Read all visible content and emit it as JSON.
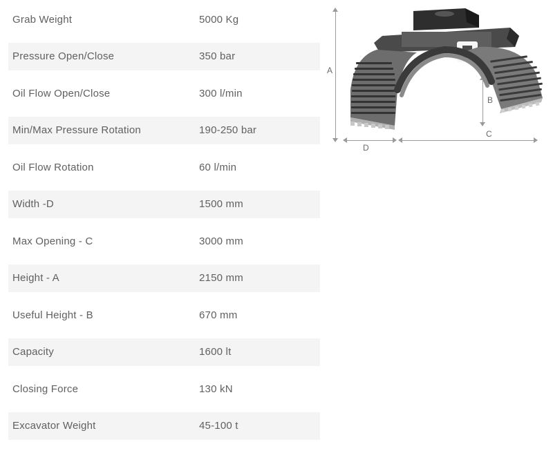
{
  "specs": [
    {
      "label": "Grab Weight",
      "value": "5000 Kg"
    },
    {
      "label": "Pressure Open/Close",
      "value": "350 bar"
    },
    {
      "label": "Oil Flow Open/Close",
      "value": "300 l/min"
    },
    {
      "label": "Min/Max Pressure Rotation",
      "value": "190-250 bar"
    },
    {
      "label": "Oil Flow Rotation",
      "value": "60 l/min"
    },
    {
      "label": "Width -D",
      "value": "1500 mm"
    },
    {
      "label": "Max Opening - C",
      "value": "3000 mm"
    },
    {
      "label": "Height - A",
      "value": "2150 mm"
    },
    {
      "label": "Useful Height - B",
      "value": "670 mm"
    },
    {
      "label": "Capacity",
      "value": "1600 lt"
    },
    {
      "label": "Closing Force",
      "value": "130 kN"
    },
    {
      "label": "Excavator Weight",
      "value": "45-100 t"
    }
  ],
  "diagram": {
    "labels": {
      "A": "A",
      "B": "B",
      "C": "C",
      "D": "D"
    },
    "colors": {
      "row_stripe": "#f4f4f4",
      "text": "#5f6062",
      "dim_text": "#6a6a6a",
      "arrow": "#9a9a9a",
      "grab_dark": "#3a3a3a",
      "grab_mid": "#6d6d6d",
      "grab_light": "#b5b5b5",
      "logo_bg": "#ffffff"
    },
    "fontsize_label": 15,
    "fontsize_dim": 12
  }
}
